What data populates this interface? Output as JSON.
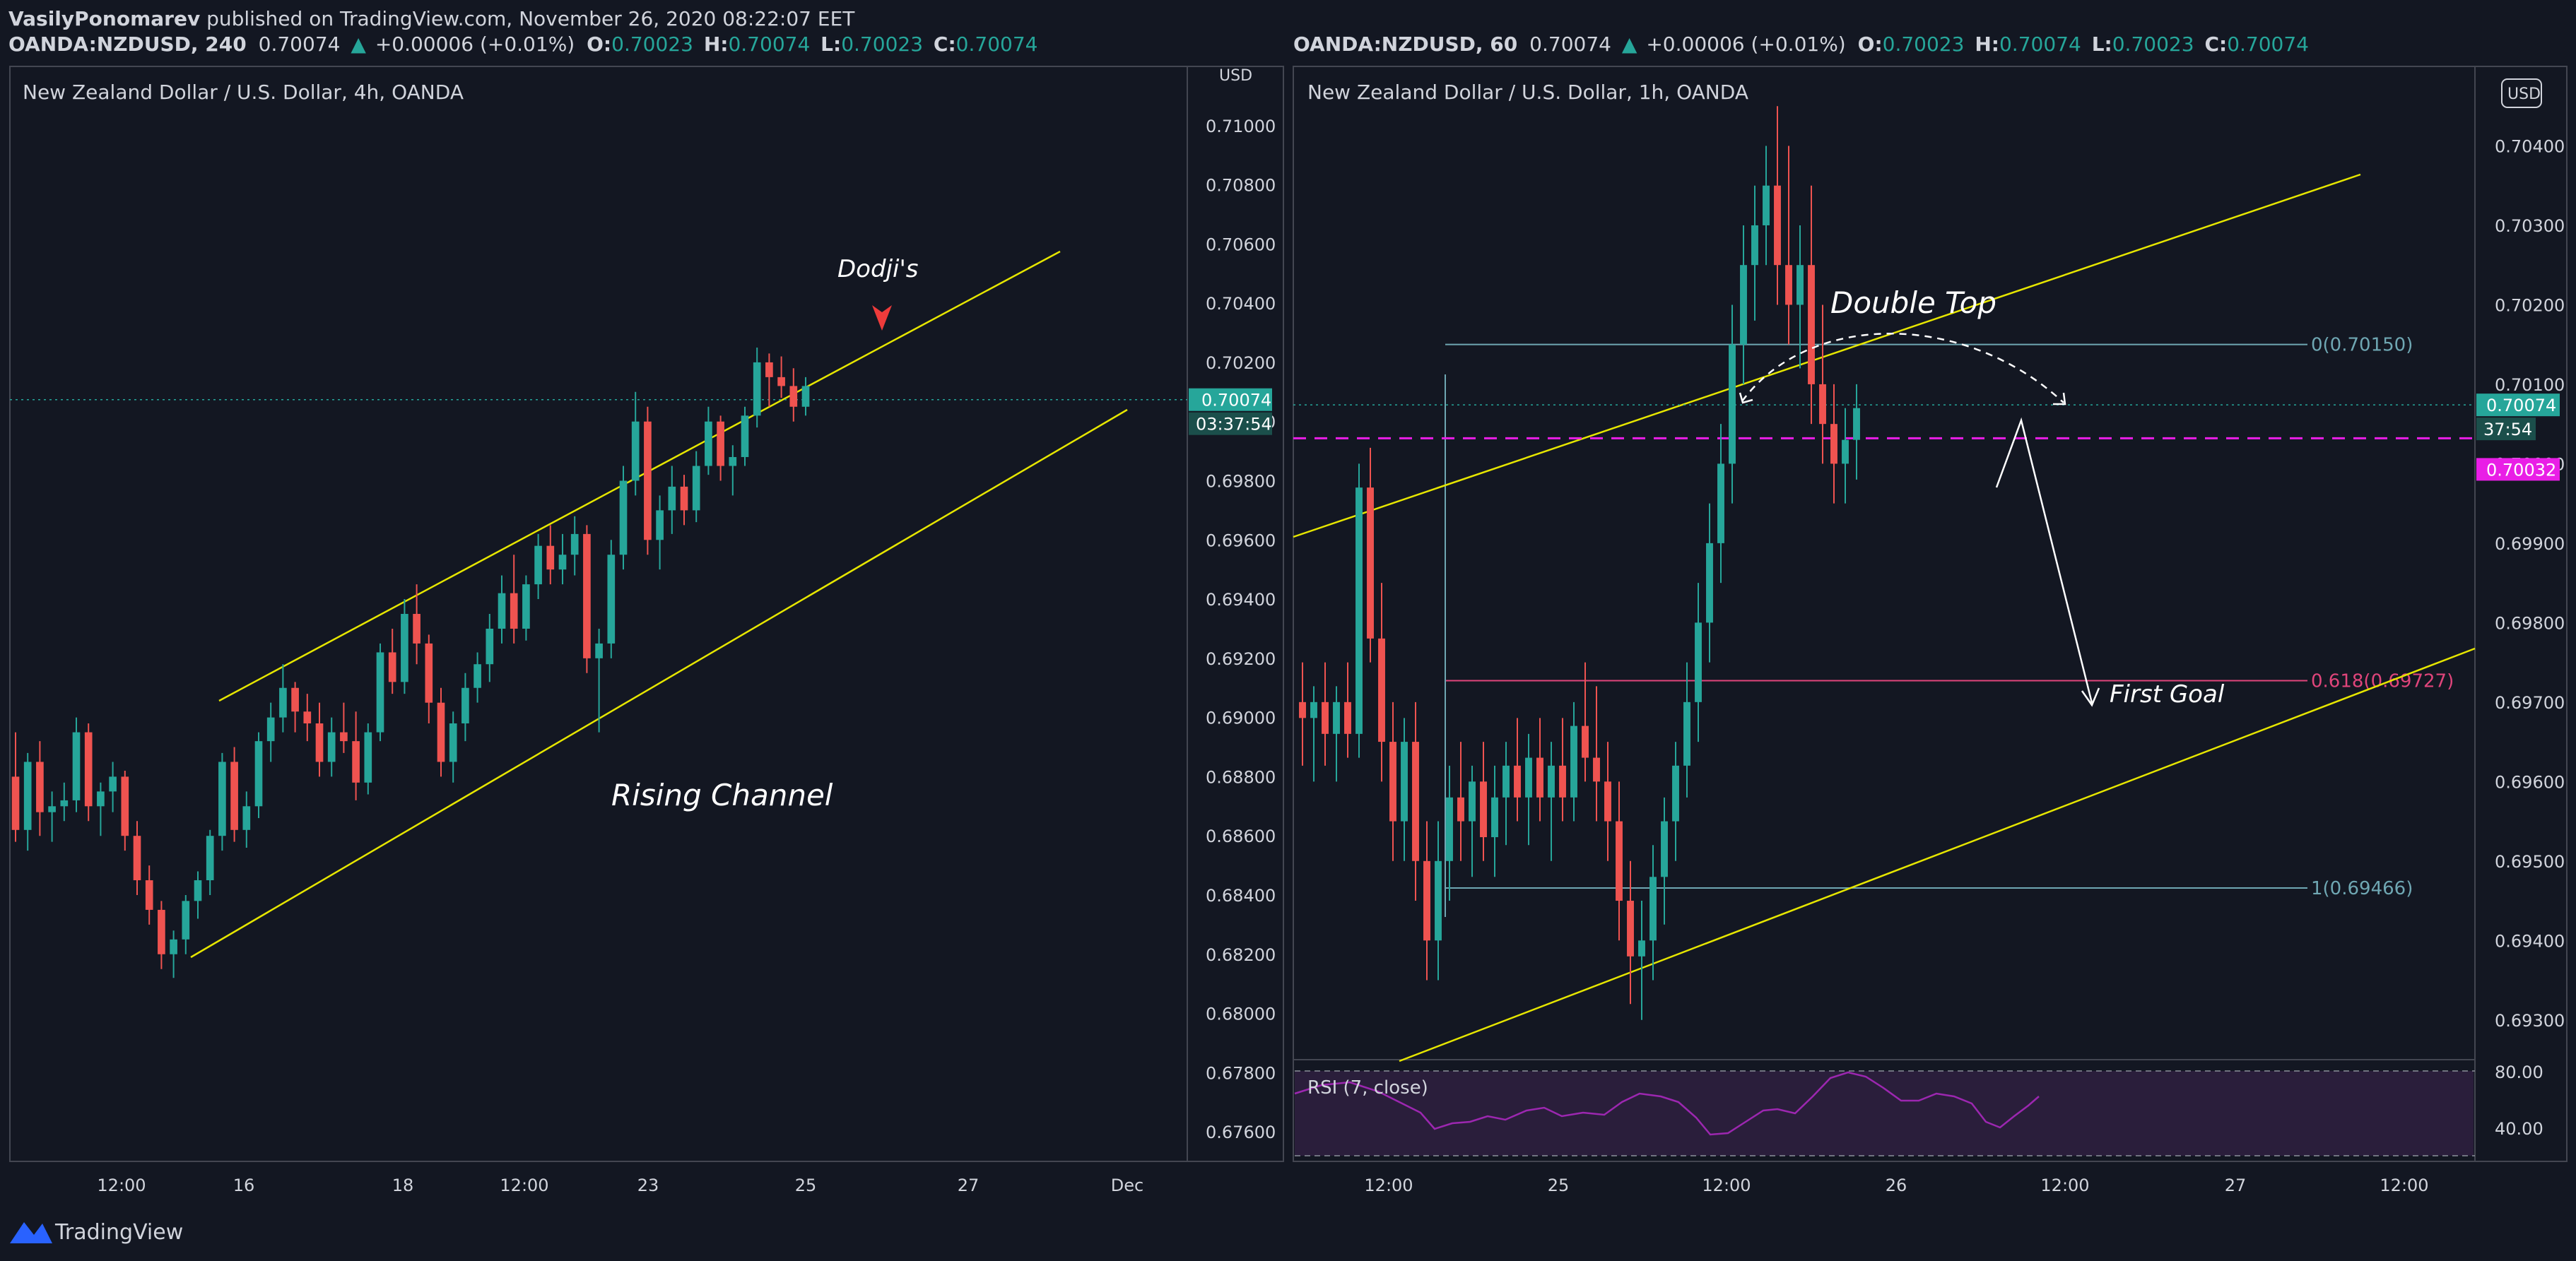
{
  "publisher": {
    "author": "VasilyPonomarev",
    "text": " published on TradingView.com, November 26, 2020 08:22:07 EET"
  },
  "brand": "TradingView",
  "colors": {
    "bg": "#131722",
    "up": "#26a69a",
    "down": "#ef5350",
    "channel": "#e6e600",
    "fib_level": "#6fa7b3",
    "goal": "#e0457b",
    "dashed_level": "#e91ee6",
    "rsi": "#9c27b0"
  },
  "left": {
    "header": {
      "symbol": "OANDA:NZDUSD, 240",
      "last": "0.70074",
      "change": "+0.00006 (+0.01%)",
      "O": "0.70023",
      "H": "0.70074",
      "L": "0.70023",
      "C": "0.70074"
    },
    "title": "New Zealand Dollar / U.S. Dollar, 4h, OANDA",
    "currency": "USD",
    "price_tag": "0.70074",
    "countdown": "03:37:54",
    "annotations": {
      "dodji": "Dodji's",
      "channel": "Rising Channel"
    }
  },
  "right": {
    "header": {
      "symbol": "OANDA:NZDUSD, 60",
      "last": "0.70074",
      "change": "+0.00006 (+0.01%)",
      "O": "0.70023",
      "H": "0.70074",
      "L": "0.70023",
      "C": "0.70074"
    },
    "title": "New Zealand Dollar / U.S. Dollar, 1h, OANDA",
    "currency": "USD",
    "price_tag": "0.70074",
    "countdown": "37:54",
    "level_tag": "0.70032",
    "annotations": {
      "double_top": "Double Top",
      "first_goal": "First Goal"
    },
    "fib": {
      "top": "0(0.70150)",
      "goal": "0.618(0.69727)",
      "bottom": "1(0.69466)"
    },
    "rsi": {
      "label": "RSI (7, close)",
      "levels": [
        "80.00",
        "40.00"
      ]
    }
  },
  "chart_data": [
    {
      "type": "candlestick",
      "title": "New Zealand Dollar / U.S. Dollar, 4h, OANDA",
      "ylabel": "USD",
      "ylim": [
        0.675,
        0.712
      ],
      "y_ticks": [
        "0.71000",
        "0.70800",
        "0.70600",
        "0.70400",
        "0.70200",
        "0.70000",
        "0.69800",
        "0.69600",
        "0.69400",
        "0.69200",
        "0.69000",
        "0.68800",
        "0.68600",
        "0.68400",
        "0.68200",
        "0.68000",
        "0.67800",
        "0.67600"
      ],
      "x_ticks": [
        "12:00",
        "16",
        "18",
        "12:00",
        "23",
        "25",
        "27",
        "Dec"
      ],
      "last_price": 0.70074,
      "candles": [
        [
          0.688,
          0.6895,
          0.6858,
          0.6862
        ],
        [
          0.6862,
          0.6888,
          0.6855,
          0.6885
        ],
        [
          0.6885,
          0.6892,
          0.686,
          0.6868
        ],
        [
          0.6868,
          0.6875,
          0.6858,
          0.687
        ],
        [
          0.687,
          0.6878,
          0.6865,
          0.6872
        ],
        [
          0.6872,
          0.69,
          0.6868,
          0.6895
        ],
        [
          0.6895,
          0.6898,
          0.6865,
          0.687
        ],
        [
          0.687,
          0.6878,
          0.686,
          0.6875
        ],
        [
          0.6875,
          0.6885,
          0.6868,
          0.688
        ],
        [
          0.688,
          0.6882,
          0.6855,
          0.686
        ],
        [
          0.686,
          0.6865,
          0.684,
          0.6845
        ],
        [
          0.6845,
          0.685,
          0.683,
          0.6835
        ],
        [
          0.6835,
          0.6838,
          0.6815,
          0.682
        ],
        [
          0.682,
          0.6828,
          0.6812,
          0.6825
        ],
        [
          0.6825,
          0.684,
          0.682,
          0.6838
        ],
        [
          0.6838,
          0.6848,
          0.6832,
          0.6845
        ],
        [
          0.6845,
          0.6862,
          0.684,
          0.686
        ],
        [
          0.686,
          0.6888,
          0.6855,
          0.6885
        ],
        [
          0.6885,
          0.689,
          0.6858,
          0.6862
        ],
        [
          0.6862,
          0.6875,
          0.6856,
          0.687
        ],
        [
          0.687,
          0.6895,
          0.6866,
          0.6892
        ],
        [
          0.6892,
          0.6905,
          0.6885,
          0.69
        ],
        [
          0.69,
          0.6918,
          0.6895,
          0.691
        ],
        [
          0.691,
          0.6912,
          0.6895,
          0.6902
        ],
        [
          0.6902,
          0.6908,
          0.6892,
          0.6898
        ],
        [
          0.6898,
          0.6905,
          0.688,
          0.6885
        ],
        [
          0.6885,
          0.69,
          0.688,
          0.6895
        ],
        [
          0.6895,
          0.6905,
          0.6888,
          0.6892
        ],
        [
          0.6892,
          0.6902,
          0.6872,
          0.6878
        ],
        [
          0.6878,
          0.6898,
          0.6874,
          0.6895
        ],
        [
          0.6895,
          0.6925,
          0.6892,
          0.6922
        ],
        [
          0.6922,
          0.693,
          0.6908,
          0.6912
        ],
        [
          0.6912,
          0.694,
          0.6908,
          0.6935
        ],
        [
          0.6935,
          0.6945,
          0.6918,
          0.6925
        ],
        [
          0.6925,
          0.6928,
          0.6898,
          0.6905
        ],
        [
          0.6905,
          0.691,
          0.688,
          0.6885
        ],
        [
          0.6885,
          0.6902,
          0.6878,
          0.6898
        ],
        [
          0.6898,
          0.6915,
          0.6892,
          0.691
        ],
        [
          0.691,
          0.6922,
          0.6905,
          0.6918
        ],
        [
          0.6918,
          0.6935,
          0.6912,
          0.693
        ],
        [
          0.693,
          0.6948,
          0.6925,
          0.6942
        ],
        [
          0.6942,
          0.6955,
          0.6925,
          0.693
        ],
        [
          0.693,
          0.6948,
          0.6926,
          0.6945
        ],
        [
          0.6945,
          0.6962,
          0.694,
          0.6958
        ],
        [
          0.6958,
          0.6965,
          0.6945,
          0.695
        ],
        [
          0.695,
          0.6962,
          0.6945,
          0.6955
        ],
        [
          0.6955,
          0.6968,
          0.6948,
          0.6962
        ],
        [
          0.6962,
          0.6965,
          0.6915,
          0.692
        ],
        [
          0.692,
          0.693,
          0.6895,
          0.6925
        ],
        [
          0.6925,
          0.696,
          0.692,
          0.6955
        ],
        [
          0.6955,
          0.6985,
          0.695,
          0.698
        ],
        [
          0.698,
          0.701,
          0.6975,
          0.7
        ],
        [
          0.7,
          0.7005,
          0.6955,
          0.696
        ],
        [
          0.696,
          0.6975,
          0.695,
          0.697
        ],
        [
          0.697,
          0.6985,
          0.6962,
          0.6978
        ],
        [
          0.6978,
          0.6982,
          0.6965,
          0.697
        ],
        [
          0.697,
          0.699,
          0.6966,
          0.6985
        ],
        [
          0.6985,
          0.7005,
          0.6982,
          0.7
        ],
        [
          0.7,
          0.7002,
          0.698,
          0.6985
        ],
        [
          0.6985,
          0.6992,
          0.6975,
          0.6988
        ],
        [
          0.6988,
          0.7005,
          0.6985,
          0.7002
        ],
        [
          0.7002,
          0.7025,
          0.6998,
          0.702
        ],
        [
          0.702,
          0.7023,
          0.7005,
          0.7015
        ],
        [
          0.7015,
          0.7022,
          0.7008,
          0.7012
        ],
        [
          0.7012,
          0.7018,
          0.7,
          0.7005
        ],
        [
          0.7005,
          0.7015,
          0.7002,
          0.7012
        ]
      ]
    },
    {
      "type": "candlestick",
      "title": "New Zealand Dollar / U.S. Dollar, 1h, OANDA",
      "ylabel": "USD",
      "ylim": [
        0.6925,
        0.705
      ],
      "y_ticks": [
        "0.70400",
        "0.70300",
        "0.70200",
        "0.70100",
        "0.70000",
        "0.69900",
        "0.69800",
        "0.69700",
        "0.69600",
        "0.69500",
        "0.69400",
        "0.69300"
      ],
      "x_ticks": [
        "12:00",
        "25",
        "12:00",
        "26",
        "12:00",
        "27",
        "12:00"
      ],
      "last_price": 0.70074,
      "dashed_level": 0.70032,
      "fib_levels": [
        {
          "label": "0",
          "value": 0.7015
        },
        {
          "label": "0.618",
          "value": 0.69727
        },
        {
          "label": "1",
          "value": 0.69466
        }
      ],
      "candles": [
        [
          0.697,
          0.6975,
          0.6962,
          0.6968
        ],
        [
          0.6968,
          0.6972,
          0.696,
          0.697
        ],
        [
          0.697,
          0.6975,
          0.6962,
          0.6966
        ],
        [
          0.6966,
          0.6972,
          0.696,
          0.697
        ],
        [
          0.697,
          0.6975,
          0.6963,
          0.6966
        ],
        [
          0.6966,
          0.7,
          0.6963,
          0.6997
        ],
        [
          0.6997,
          0.7002,
          0.6975,
          0.6978
        ],
        [
          0.6978,
          0.6985,
          0.696,
          0.6965
        ],
        [
          0.6965,
          0.697,
          0.695,
          0.6955
        ],
        [
          0.6955,
          0.6968,
          0.695,
          0.6965
        ],
        [
          0.6965,
          0.697,
          0.6945,
          0.695
        ],
        [
          0.695,
          0.6955,
          0.6935,
          0.694
        ],
        [
          0.694,
          0.6955,
          0.6935,
          0.695
        ],
        [
          0.695,
          0.6962,
          0.6945,
          0.6958
        ],
        [
          0.6958,
          0.6965,
          0.695,
          0.6955
        ],
        [
          0.6955,
          0.6962,
          0.6948,
          0.696
        ],
        [
          0.696,
          0.6965,
          0.695,
          0.6953
        ],
        [
          0.6953,
          0.6962,
          0.6948,
          0.6958
        ],
        [
          0.6958,
          0.6965,
          0.6952,
          0.6962
        ],
        [
          0.6962,
          0.6968,
          0.6955,
          0.6958
        ],
        [
          0.6958,
          0.6966,
          0.6952,
          0.6963
        ],
        [
          0.6963,
          0.6968,
          0.6955,
          0.6958
        ],
        [
          0.6958,
          0.6965,
          0.695,
          0.6962
        ],
        [
          0.6962,
          0.6968,
          0.6955,
          0.6958
        ],
        [
          0.6958,
          0.697,
          0.6955,
          0.6967
        ],
        [
          0.6967,
          0.6975,
          0.696,
          0.6963
        ],
        [
          0.6963,
          0.6972,
          0.6955,
          0.696
        ],
        [
          0.696,
          0.6965,
          0.695,
          0.6955
        ],
        [
          0.6955,
          0.696,
          0.694,
          0.6945
        ],
        [
          0.6945,
          0.695,
          0.6932,
          0.6938
        ],
        [
          0.6938,
          0.6945,
          0.693,
          0.694
        ],
        [
          0.694,
          0.6952,
          0.6935,
          0.6948
        ],
        [
          0.6948,
          0.6958,
          0.6942,
          0.6955
        ],
        [
          0.6955,
          0.6965,
          0.695,
          0.6962
        ],
        [
          0.6962,
          0.6975,
          0.6958,
          0.697
        ],
        [
          0.697,
          0.6985,
          0.6965,
          0.698
        ],
        [
          0.698,
          0.6995,
          0.6975,
          0.699
        ],
        [
          0.699,
          0.7005,
          0.6985,
          0.7
        ],
        [
          0.7,
          0.702,
          0.6995,
          0.7015
        ],
        [
          0.7015,
          0.703,
          0.701,
          0.7025
        ],
        [
          0.7025,
          0.7035,
          0.7018,
          0.703
        ],
        [
          0.703,
          0.704,
          0.7025,
          0.7035
        ],
        [
          0.7035,
          0.7045,
          0.702,
          0.7025
        ],
        [
          0.7025,
          0.704,
          0.7015,
          0.702
        ],
        [
          0.702,
          0.703,
          0.7012,
          0.7025
        ],
        [
          0.7025,
          0.7035,
          0.7005,
          0.701
        ],
        [
          0.701,
          0.702,
          0.7,
          0.7005
        ],
        [
          0.7005,
          0.701,
          0.6995,
          0.7
        ],
        [
          0.7,
          0.7007,
          0.6995,
          0.7003
        ],
        [
          0.7003,
          0.701,
          0.6998,
          0.7007
        ]
      ]
    }
  ]
}
